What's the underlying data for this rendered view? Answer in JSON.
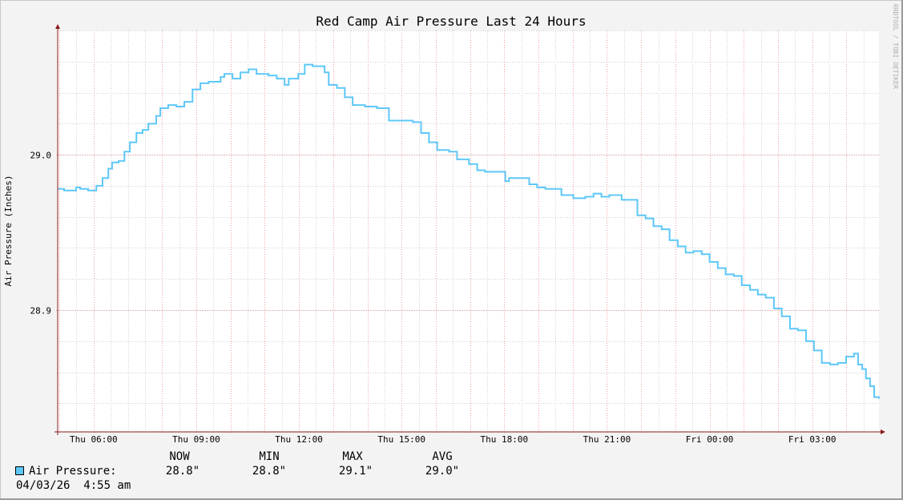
{
  "chart_data": {
    "type": "line",
    "title": "Red Camp Air Pressure Last 24 Hours",
    "ylabel": "Air Pressure (Inches)",
    "xlabel": "",
    "credit": "RRDTOOL / TOBI OETIKER",
    "x_unit": "hours since Thu 04:56",
    "xlim": [
      0,
      24
    ],
    "ylim": [
      28.8216,
      29.08
    ],
    "grid": true,
    "y_ticks": [
      {
        "value": 28.9,
        "label": "28.9"
      },
      {
        "value": 29.0,
        "label": "29.0"
      }
    ],
    "x_ticks": [
      {
        "t": 1.05,
        "label": "Thu 06:00"
      },
      {
        "t": 4.05,
        "label": "Thu 09:00"
      },
      {
        "t": 7.05,
        "label": "Thu 12:00"
      },
      {
        "t": 10.05,
        "label": "Thu 15:00"
      },
      {
        "t": 13.05,
        "label": "Thu 18:00"
      },
      {
        "t": 16.05,
        "label": "Thu 21:00"
      },
      {
        "t": 19.05,
        "label": "Fri 00:00"
      },
      {
        "t": 22.05,
        "label": "Fri 03:00"
      }
    ],
    "series": [
      {
        "name": "Air Pressure",
        "color": "#5ec8f8",
        "x": [
          0,
          0.19,
          0.54,
          0.66,
          0.89,
          1.13,
          1.31,
          1.48,
          1.59,
          1.78,
          1.95,
          2.11,
          2.3,
          2.48,
          2.65,
          2.88,
          3.0,
          3.23,
          3.47,
          3.7,
          3.94,
          4.17,
          4.41,
          4.76,
          4.87,
          5.11,
          5.34,
          5.58,
          5.81,
          6.16,
          6.4,
          6.63,
          6.75,
          7.03,
          7.22,
          7.45,
          7.69,
          7.8,
          7.92,
          8.16,
          8.39,
          8.62,
          8.98,
          9.33,
          9.68,
          10.03,
          10.38,
          10.62,
          10.85,
          11.09,
          11.44,
          11.67,
          12.02,
          12.26,
          12.49,
          12.73,
          13.08,
          13.19,
          13.55,
          13.78,
          14.01,
          14.25,
          14.72,
          15.07,
          15.42,
          15.66,
          15.89,
          16.12,
          16.48,
          16.83,
          16.94,
          17.18,
          17.41,
          17.65,
          17.88,
          18.12,
          18.35,
          18.58,
          18.82,
          19.05,
          19.29,
          19.52,
          19.76,
          19.99,
          20.23,
          20.46,
          20.69,
          20.93,
          21.16,
          21.4,
          21.63,
          21.87,
          22.1,
          22.33,
          22.57,
          22.8,
          23.04,
          23.27,
          23.39,
          23.51,
          23.62,
          23.74,
          23.86,
          24.0
        ],
        "values": [
          28.978,
          28.977,
          28.979,
          28.978,
          28.977,
          28.98,
          28.985,
          28.991,
          28.995,
          28.996,
          29.002,
          29.008,
          29.014,
          29.016,
          29.02,
          29.025,
          29.03,
          29.032,
          29.031,
          29.034,
          29.042,
          29.046,
          29.047,
          29.05,
          29.052,
          29.049,
          29.053,
          29.055,
          29.052,
          29.051,
          29.049,
          29.045,
          29.049,
          29.052,
          29.058,
          29.057,
          29.057,
          29.053,
          29.045,
          29.043,
          29.037,
          29.032,
          29.031,
          29.03,
          29.022,
          29.022,
          29.021,
          29.014,
          29.008,
          29.003,
          29.002,
          28.997,
          28.994,
          28.99,
          28.989,
          28.989,
          28.983,
          28.985,
          28.985,
          28.981,
          28.979,
          28.978,
          28.974,
          28.972,
          28.973,
          28.975,
          28.973,
          28.974,
          28.971,
          28.971,
          28.961,
          28.959,
          28.954,
          28.952,
          28.945,
          28.941,
          28.937,
          28.938,
          28.936,
          28.931,
          28.927,
          28.923,
          28.922,
          28.916,
          28.913,
          28.91,
          28.908,
          28.901,
          28.896,
          28.888,
          28.887,
          28.88,
          28.874,
          28.866,
          28.865,
          28.866,
          28.87,
          28.872,
          28.865,
          28.862,
          28.856,
          28.851,
          28.844,
          28.843
        ]
      }
    ]
  },
  "legend": {
    "headers": {
      "now": "NOW",
      "min": "MIN",
      "max": "MAX",
      "avg": "AVG"
    },
    "series_label": "Air Pressure:",
    "now": "28.8\"",
    "min": "28.8\"",
    "max": "29.1\"",
    "avg": "29.0\"",
    "timestamp": "04/03/26  4:55 am"
  }
}
